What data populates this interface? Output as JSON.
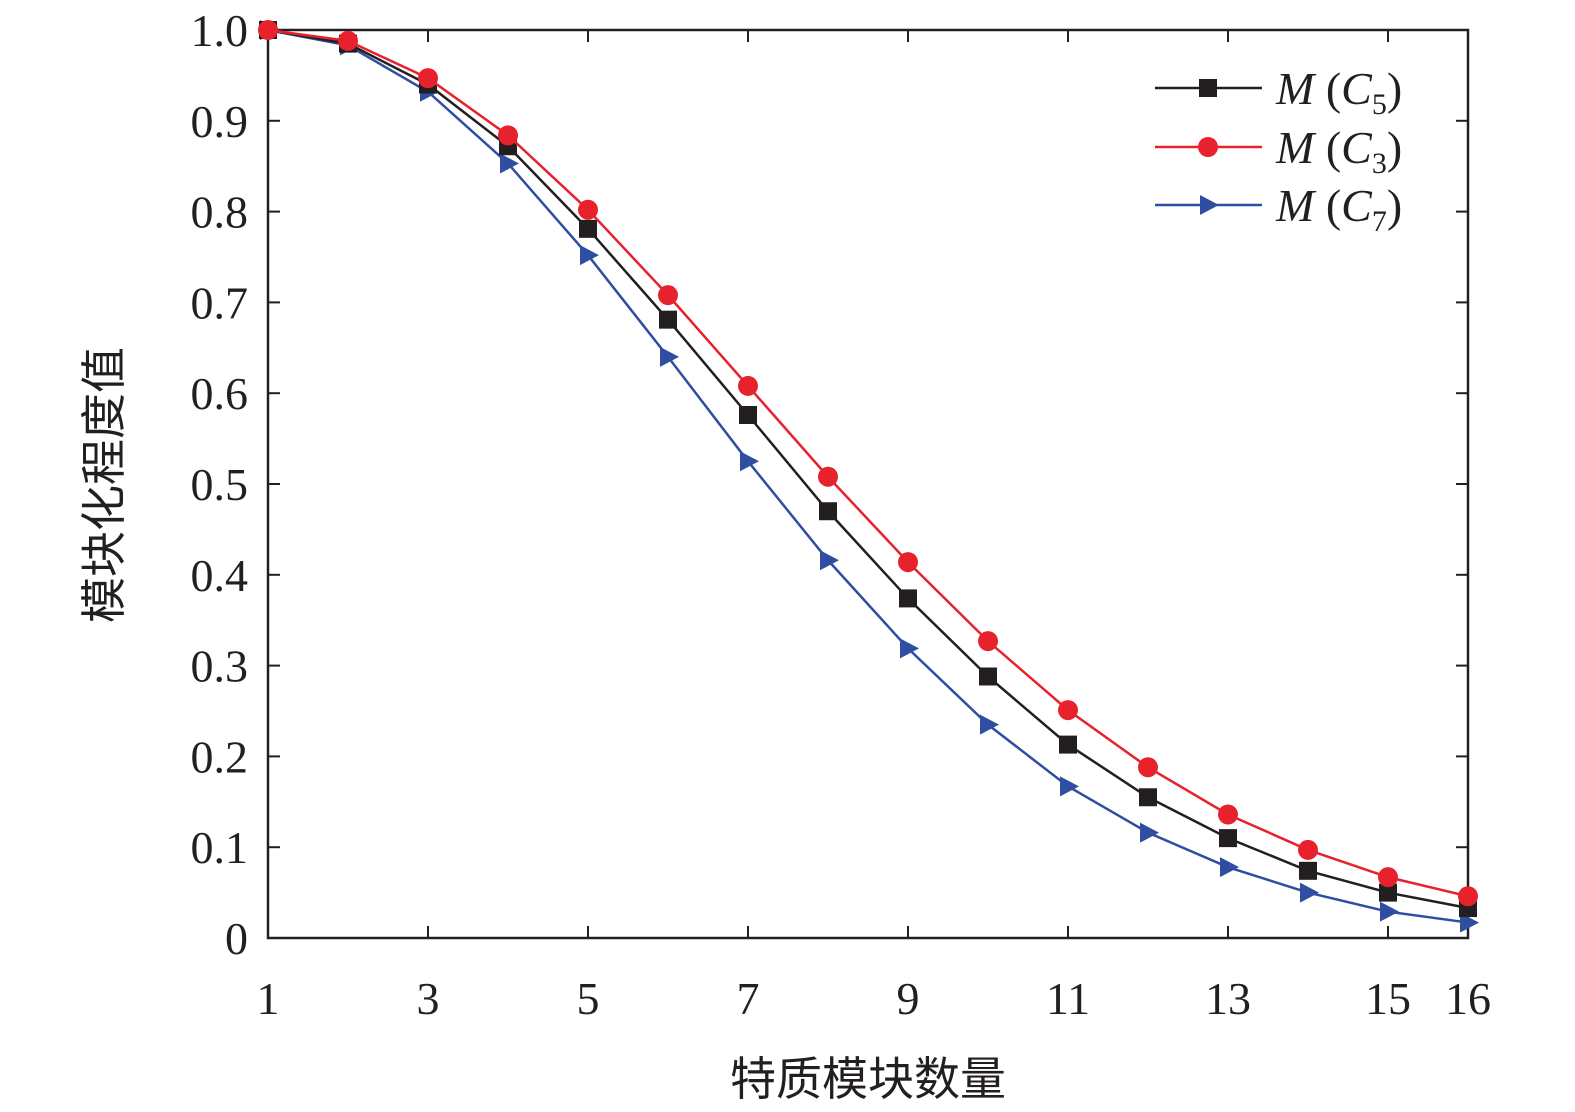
{
  "chart_data": {
    "type": "line",
    "title": "",
    "xlabel": "特质模块数量",
    "ylabel": "模块化程度值",
    "xlim": [
      1,
      16
    ],
    "ylim": [
      0,
      1.0
    ],
    "x": [
      1,
      2,
      3,
      4,
      5,
      6,
      7,
      8,
      9,
      10,
      11,
      12,
      13,
      14,
      15,
      16
    ],
    "x_ticks": [
      1,
      3,
      5,
      7,
      9,
      11,
      13,
      15,
      16
    ],
    "x_tick_labels": [
      "1",
      "3",
      "5",
      "7",
      "9",
      "11",
      "13",
      "15",
      "16"
    ],
    "y_ticks": [
      0,
      0.1,
      0.2,
      0.3,
      0.4,
      0.5,
      0.6,
      0.7,
      0.8,
      0.9,
      1.0
    ],
    "y_tick_labels": [
      "0",
      "0.1",
      "0.2",
      "0.3",
      "0.4",
      "0.5",
      "0.6",
      "0.7",
      "0.8",
      "0.9",
      "1.0"
    ],
    "grid": false,
    "legend_position": "top-right",
    "series": [
      {
        "name": "M (C5)",
        "legend_main": "M",
        "legend_paren_open": " (",
        "legend_var": "C",
        "legend_sub": "5",
        "legend_paren_close": ")",
        "color": "#231f20",
        "marker": "square",
        "values": [
          1.0,
          0.985,
          0.94,
          0.872,
          0.781,
          0.681,
          0.576,
          0.47,
          0.374,
          0.288,
          0.213,
          0.155,
          0.11,
          0.074,
          0.05,
          0.033
        ]
      },
      {
        "name": "M (C3)",
        "legend_main": "M",
        "legend_paren_open": " (",
        "legend_var": "C",
        "legend_sub": "3",
        "legend_paren_close": ")",
        "color": "#e8222d",
        "marker": "circle",
        "values": [
          1.0,
          0.988,
          0.947,
          0.884,
          0.802,
          0.708,
          0.608,
          0.508,
          0.414,
          0.327,
          0.251,
          0.188,
          0.136,
          0.097,
          0.067,
          0.046
        ]
      },
      {
        "name": "M (C7)",
        "legend_main": "M",
        "legend_paren_open": " (",
        "legend_var": "C",
        "legend_sub": "7",
        "legend_paren_close": ")",
        "color": "#2f4ea1",
        "marker": "triangle-right",
        "values": [
          1.0,
          0.983,
          0.932,
          0.853,
          0.752,
          0.64,
          0.525,
          0.416,
          0.319,
          0.235,
          0.167,
          0.116,
          0.078,
          0.05,
          0.029,
          0.017
        ]
      }
    ]
  }
}
